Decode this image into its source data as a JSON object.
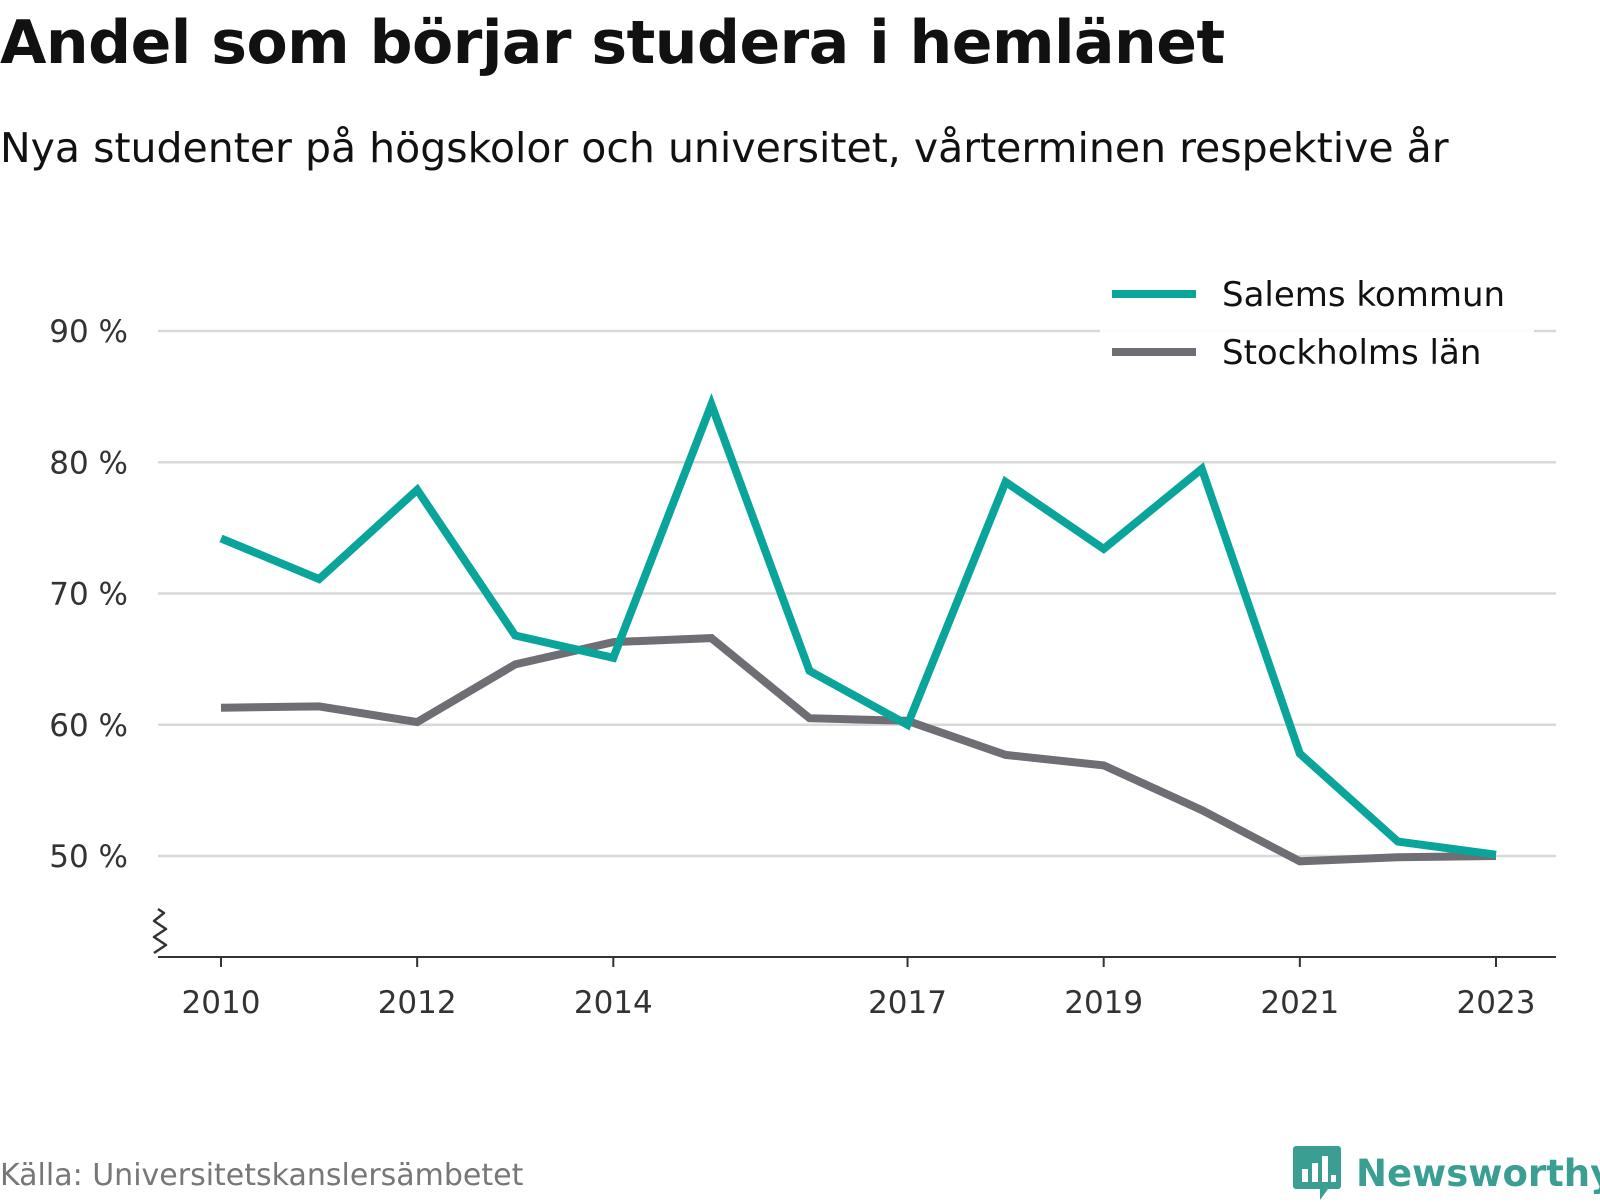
{
  "title": "Andel som börjar studera i hemlänet",
  "subtitle": "Nya studenter på högskolor och universitet, vårterminen respektive år",
  "source": "Källa: Universitetskanslersämbetet",
  "brand": {
    "name": "Newsworthy",
    "icon": "newsworthy-logo-icon",
    "color": "#3a9e93"
  },
  "chart_data": {
    "type": "line",
    "x": [
      2010,
      2011,
      2012,
      2013,
      2014,
      2015,
      2016,
      2017,
      2018,
      2019,
      2020,
      2021,
      2022,
      2023
    ],
    "x_tick_labels": [
      "2010",
      "2012",
      "2014",
      "2017",
      "2019",
      "2021",
      "2023"
    ],
    "y_ticks": [
      50,
      60,
      70,
      80,
      90
    ],
    "y_tick_labels": [
      "50 %",
      "60 %",
      "70 %",
      "80 %",
      "90 %"
    ],
    "ylim": [
      42,
      95
    ],
    "y_axis_break": true,
    "grid": true,
    "legend": "top-right",
    "series": [
      {
        "name": "Salems kommun",
        "color": "#0aa59a",
        "values": [
          74.2,
          71.1,
          77.9,
          66.8,
          65.1,
          84.4,
          64.1,
          60.0,
          78.5,
          73.4,
          79.5,
          57.8,
          51.1,
          50.1
        ]
      },
      {
        "name": "Stockholms län",
        "color": "#6f6e74",
        "values": [
          61.3,
          61.4,
          60.2,
          64.6,
          66.3,
          66.6,
          60.5,
          60.3,
          57.7,
          56.9,
          53.5,
          49.6,
          49.9,
          50.0
        ]
      }
    ]
  }
}
